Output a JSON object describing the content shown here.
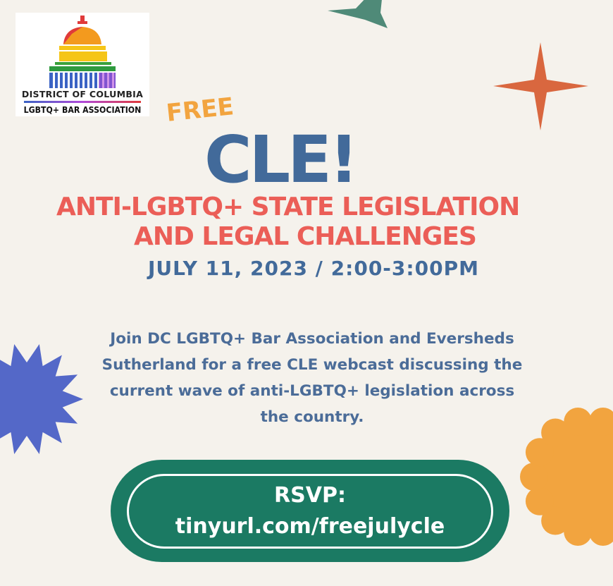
{
  "logo": {
    "line1": "DISTRICT OF COLUMBIA",
    "line2": "LGBTQ+ BAR ASSOCIATION"
  },
  "headline": {
    "free": "FREE",
    "cle": "CLE!"
  },
  "title": {
    "line1": "ANTI-LGBTQ+ STATE LEGISLATION",
    "line2": "AND LEGAL CHALLENGES"
  },
  "date": "JULY 11, 2023 / 2:00-3:00PM",
  "description": [
    "Join DC LGBTQ+ Bar Association and Eversheds",
    "Sutherland for a free CLE webcast discussing the",
    "current wave of anti-LGBTQ+ legislation across",
    "the country."
  ],
  "rsvp": {
    "label": "RSVP:",
    "url": "tinyurl.com/freejulycle"
  },
  "colors": {
    "background": "#f5f2ec",
    "blue": "#426a9a",
    "red": "#eb5e57",
    "orange": "#f2a43f",
    "green": "#1b7a63",
    "star_orange": "#d9673f",
    "burst_blue": "#5468c8",
    "star_green": "#4f8a78"
  }
}
